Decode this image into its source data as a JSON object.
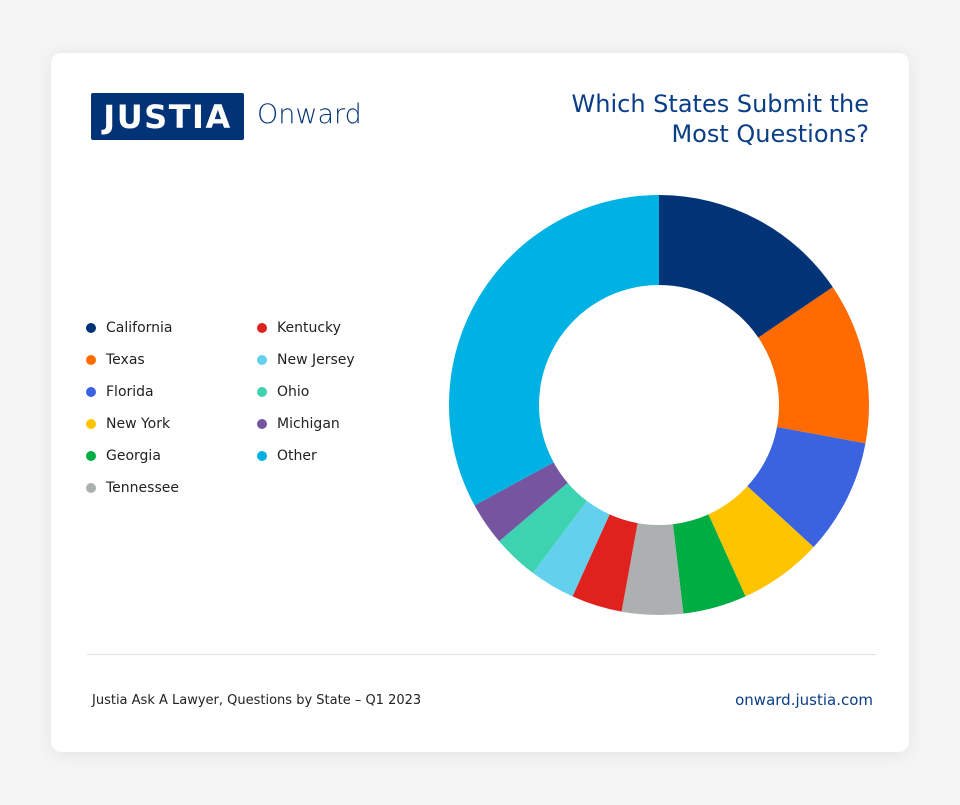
{
  "logo": {
    "mark": "JUSTIA",
    "suffix": "Onward"
  },
  "title_lines": [
    "Which States Submit the",
    "Most Questions?"
  ],
  "footer": {
    "source": "Justia Ask A Lawyer, Questions by State – Q1 2023",
    "url": "onward.justia.com"
  },
  "chart_data": {
    "type": "pie",
    "donut": true,
    "title": "Which States Submit the Most Questions?",
    "legend_position": "left",
    "categories": [
      "California",
      "Texas",
      "Florida",
      "New York",
      "Georgia",
      "Tennessee",
      "Kentucky",
      "New Jersey",
      "Ohio",
      "Michigan",
      "Other"
    ],
    "values": [
      15.5,
      12.4,
      8.9,
      6.4,
      4.9,
      4.7,
      3.9,
      3.5,
      3.5,
      3.3,
      32.9
    ],
    "unit": "percent (estimated)",
    "colors": [
      "#033377",
      "#ff6b00",
      "#3b63e0",
      "#ffc400",
      "#00ad43",
      "#acb0b0",
      "#e0221f",
      "#63d0ee",
      "#3ed3b0",
      "#7555a0",
      "#00b2e3"
    ]
  }
}
